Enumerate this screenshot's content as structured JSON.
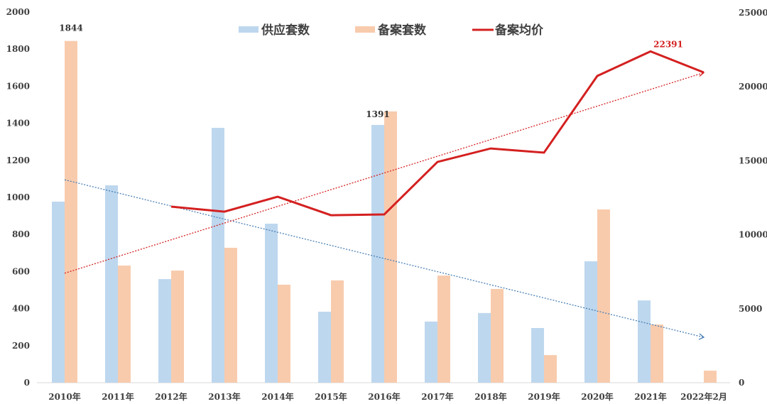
{
  "chart_data": {
    "type": "bar",
    "title": "",
    "xlabel": "",
    "ylabel": "",
    "categories": [
      "2010年",
      "2011年",
      "2012年",
      "2013年",
      "2014年",
      "2015年",
      "2016年",
      "2017年",
      "2018年",
      "2019年",
      "2020年",
      "2021年",
      "2022年2月"
    ],
    "series": [
      {
        "name": "供应套数",
        "type": "bar",
        "axis": "left",
        "color": "#bdd7ee",
        "values": [
          977,
          1065,
          559,
          1375,
          858,
          383,
          1391,
          330,
          376,
          295,
          655,
          444,
          null
        ]
      },
      {
        "name": "备案套数",
        "type": "bar",
        "axis": "left",
        "color": "#f8cbad",
        "values": [
          1844,
          632,
          605,
          728,
          529,
          552,
          1464,
          578,
          506,
          149,
          935,
          314,
          65
        ]
      },
      {
        "name": "备案均价",
        "type": "line",
        "axis": "right",
        "color": "#d42020",
        "values": [
          null,
          null,
          11900,
          11560,
          12570,
          11320,
          11370,
          14920,
          15830,
          15550,
          20730,
          22391,
          20970
        ]
      }
    ],
    "trendlines": [
      {
        "series": "备案套数",
        "style": "dotted",
        "color": "#4a7fb5",
        "direction": "down",
        "start": 1095,
        "end": 245
      },
      {
        "series": "备案均价",
        "style": "dotted",
        "color": "#d42020",
        "direction": "up",
        "start": 7400,
        "end": 20950
      }
    ],
    "data_labels": [
      {
        "category": "2010年",
        "series": "备案套数",
        "text": "1844"
      },
      {
        "category": "2016年",
        "series": "供应套数",
        "text": "1391"
      },
      {
        "category": "2021年",
        "series": "备案均价",
        "text": "22391"
      }
    ],
    "y_left": {
      "ylim": [
        0,
        2000
      ],
      "ticks": [
        "0",
        "200",
        "400",
        "600",
        "800",
        "1000",
        "1200",
        "1400",
        "1600",
        "1800",
        "2000"
      ]
    },
    "y_right": {
      "ylim": [
        0,
        25000
      ],
      "ticks": [
        "0",
        "5000",
        "10000",
        "15000",
        "20000",
        "25000"
      ]
    },
    "grid": false,
    "legend_position": "top",
    "legend": [
      "供应套数",
      "备案套数",
      "备案均价"
    ]
  }
}
